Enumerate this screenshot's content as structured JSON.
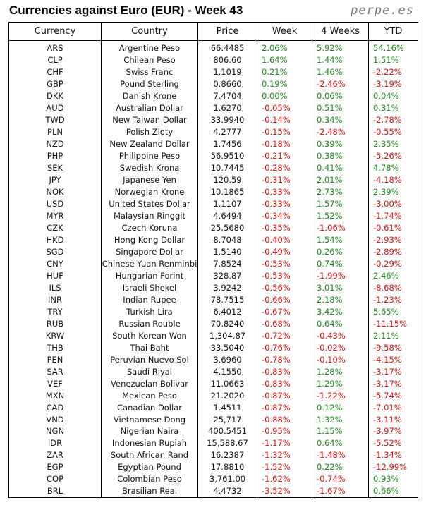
{
  "title": "Currencies against Euro (EUR) - Week 43",
  "brand": "perpe.es",
  "colors": {
    "positive": "#1a8a1a",
    "negative": "#e01010"
  },
  "chart_data": {
    "type": "table",
    "title": "Currencies against Euro (EUR) - Week 43",
    "columns": [
      "Currency",
      "Country",
      "Price",
      "Week",
      "4 Weeks",
      "YTD"
    ],
    "rows": [
      [
        "ARS",
        "Argentine Peso",
        "66.4485",
        "2.06%",
        "5.92%",
        "54.16%"
      ],
      [
        "CLP",
        "Chilean Peso",
        "806.60",
        "1.64%",
        "1.44%",
        "1.51%"
      ],
      [
        "CHF",
        "Swiss Franc",
        "1.1019",
        "0.21%",
        "1.46%",
        "-2.22%"
      ],
      [
        "GBP",
        "Pound Sterling",
        "0.8660",
        "0.19%",
        "-2.46%",
        "-3.19%"
      ],
      [
        "DKK",
        "Danish Krone",
        "7.4704",
        "0.00%",
        "0.06%",
        "0.04%"
      ],
      [
        "AUD",
        "Australian Dollar",
        "1.6270",
        "-0.05%",
        "0.51%",
        "0.31%"
      ],
      [
        "TWD",
        "New Taiwan Dollar",
        "33.9940",
        "-0.14%",
        "0.34%",
        "-2.78%"
      ],
      [
        "PLN",
        "Polish Zloty",
        "4.2777",
        "-0.15%",
        "-2.48%",
        "-0.55%"
      ],
      [
        "NZD",
        "New Zealand Dollar",
        "1.7456",
        "-0.18%",
        "0.39%",
        "2.35%"
      ],
      [
        "PHP",
        "Philippine Peso",
        "56.9510",
        "-0.21%",
        "0.38%",
        "-5.26%"
      ],
      [
        "SEK",
        "Swedish Krona",
        "10.7445",
        "-0.28%",
        "0.41%",
        "4.78%"
      ],
      [
        "JPY",
        "Japanese Yen",
        "120.59",
        "-0.31%",
        "2.01%",
        "-4.18%"
      ],
      [
        "NOK",
        "Norwegian Krone",
        "10.1865",
        "-0.33%",
        "2.73%",
        "2.39%"
      ],
      [
        "USD",
        "United States Dollar",
        "1.1107",
        "-0.33%",
        "1.57%",
        "-3.00%"
      ],
      [
        "MYR",
        "Malaysian Ringgit",
        "4.6494",
        "-0.34%",
        "1.52%",
        "-1.74%"
      ],
      [
        "CZK",
        "Czech Koruna",
        "25.5680",
        "-0.35%",
        "-1.06%",
        "-0.61%"
      ],
      [
        "HKD",
        "Hong Kong Dollar",
        "8.7048",
        "-0.40%",
        "1.54%",
        "-2.93%"
      ],
      [
        "SGD",
        "Singapore Dollar",
        "1.5140",
        "-0.49%",
        "0.26%",
        "-2.89%"
      ],
      [
        "CNY",
        "Chinese Yuan Renminbi",
        "7.8524",
        "-0.53%",
        "0.74%",
        "-0.29%"
      ],
      [
        "HUF",
        "Hungarian Forint",
        "328.87",
        "-0.53%",
        "-1.99%",
        "2.46%"
      ],
      [
        "ILS",
        "Israeli Shekel",
        "3.9242",
        "-0.56%",
        "3.01%",
        "-8.68%"
      ],
      [
        "INR",
        "Indian Rupee",
        "78.7515",
        "-0.66%",
        "2.18%",
        "-1.23%"
      ],
      [
        "TRY",
        "Turkish Lira",
        "6.4012",
        "-0.67%",
        "3.42%",
        "5.65%"
      ],
      [
        "RUB",
        "Russian Rouble",
        "70.8240",
        "-0.68%",
        "0.64%",
        "-11.15%"
      ],
      [
        "KRW",
        "South Korean Won",
        "1,304.87",
        "-0.72%",
        "-0.43%",
        "2.11%"
      ],
      [
        "THB",
        "Thai Baht",
        "33.5040",
        "-0.76%",
        "-0.02%",
        "-9.58%"
      ],
      [
        "PEN",
        "Peruvian Nuevo Sol",
        "3.6960",
        "-0.78%",
        "-0.10%",
        "-4.15%"
      ],
      [
        "SAR",
        "Saudi Riyal",
        "4.1550",
        "-0.83%",
        "1.28%",
        "-3.17%"
      ],
      [
        "VEF",
        "Venezuelan Bolivar",
        "11.0663",
        "-0.83%",
        "1.29%",
        "-3.17%"
      ],
      [
        "MXN",
        "Mexican Peso",
        "21.2020",
        "-0.87%",
        "-1.22%",
        "-5.74%"
      ],
      [
        "CAD",
        "Canadian Dollar",
        "1.4511",
        "-0.87%",
        "0.12%",
        "-7.01%"
      ],
      [
        "VND",
        "Vietnamese Dong",
        "25,717",
        "-0.88%",
        "1.32%",
        "-3.11%"
      ],
      [
        "NGN",
        "Nigerian Naira",
        "400.5451",
        "-0.95%",
        "1.15%",
        "-3.97%"
      ],
      [
        "IDR",
        "Indonesian Rupiah",
        "15,588.67",
        "-1.17%",
        "0.64%",
        "-5.52%"
      ],
      [
        "ZAR",
        "South African Rand",
        "16.2387",
        "-1.32%",
        "-1.48%",
        "-1.34%"
      ],
      [
        "EGP",
        "Egyptian Pound",
        "17.8810",
        "-1.52%",
        "0.22%",
        "-12.99%"
      ],
      [
        "COP",
        "Colombian Peso",
        "3,761.00",
        "-1.62%",
        "-0.74%",
        "0.93%"
      ],
      [
        "BRL",
        "Brasilian Real",
        "4.4732",
        "-3.52%",
        "-1.67%",
        "0.66%"
      ]
    ]
  }
}
